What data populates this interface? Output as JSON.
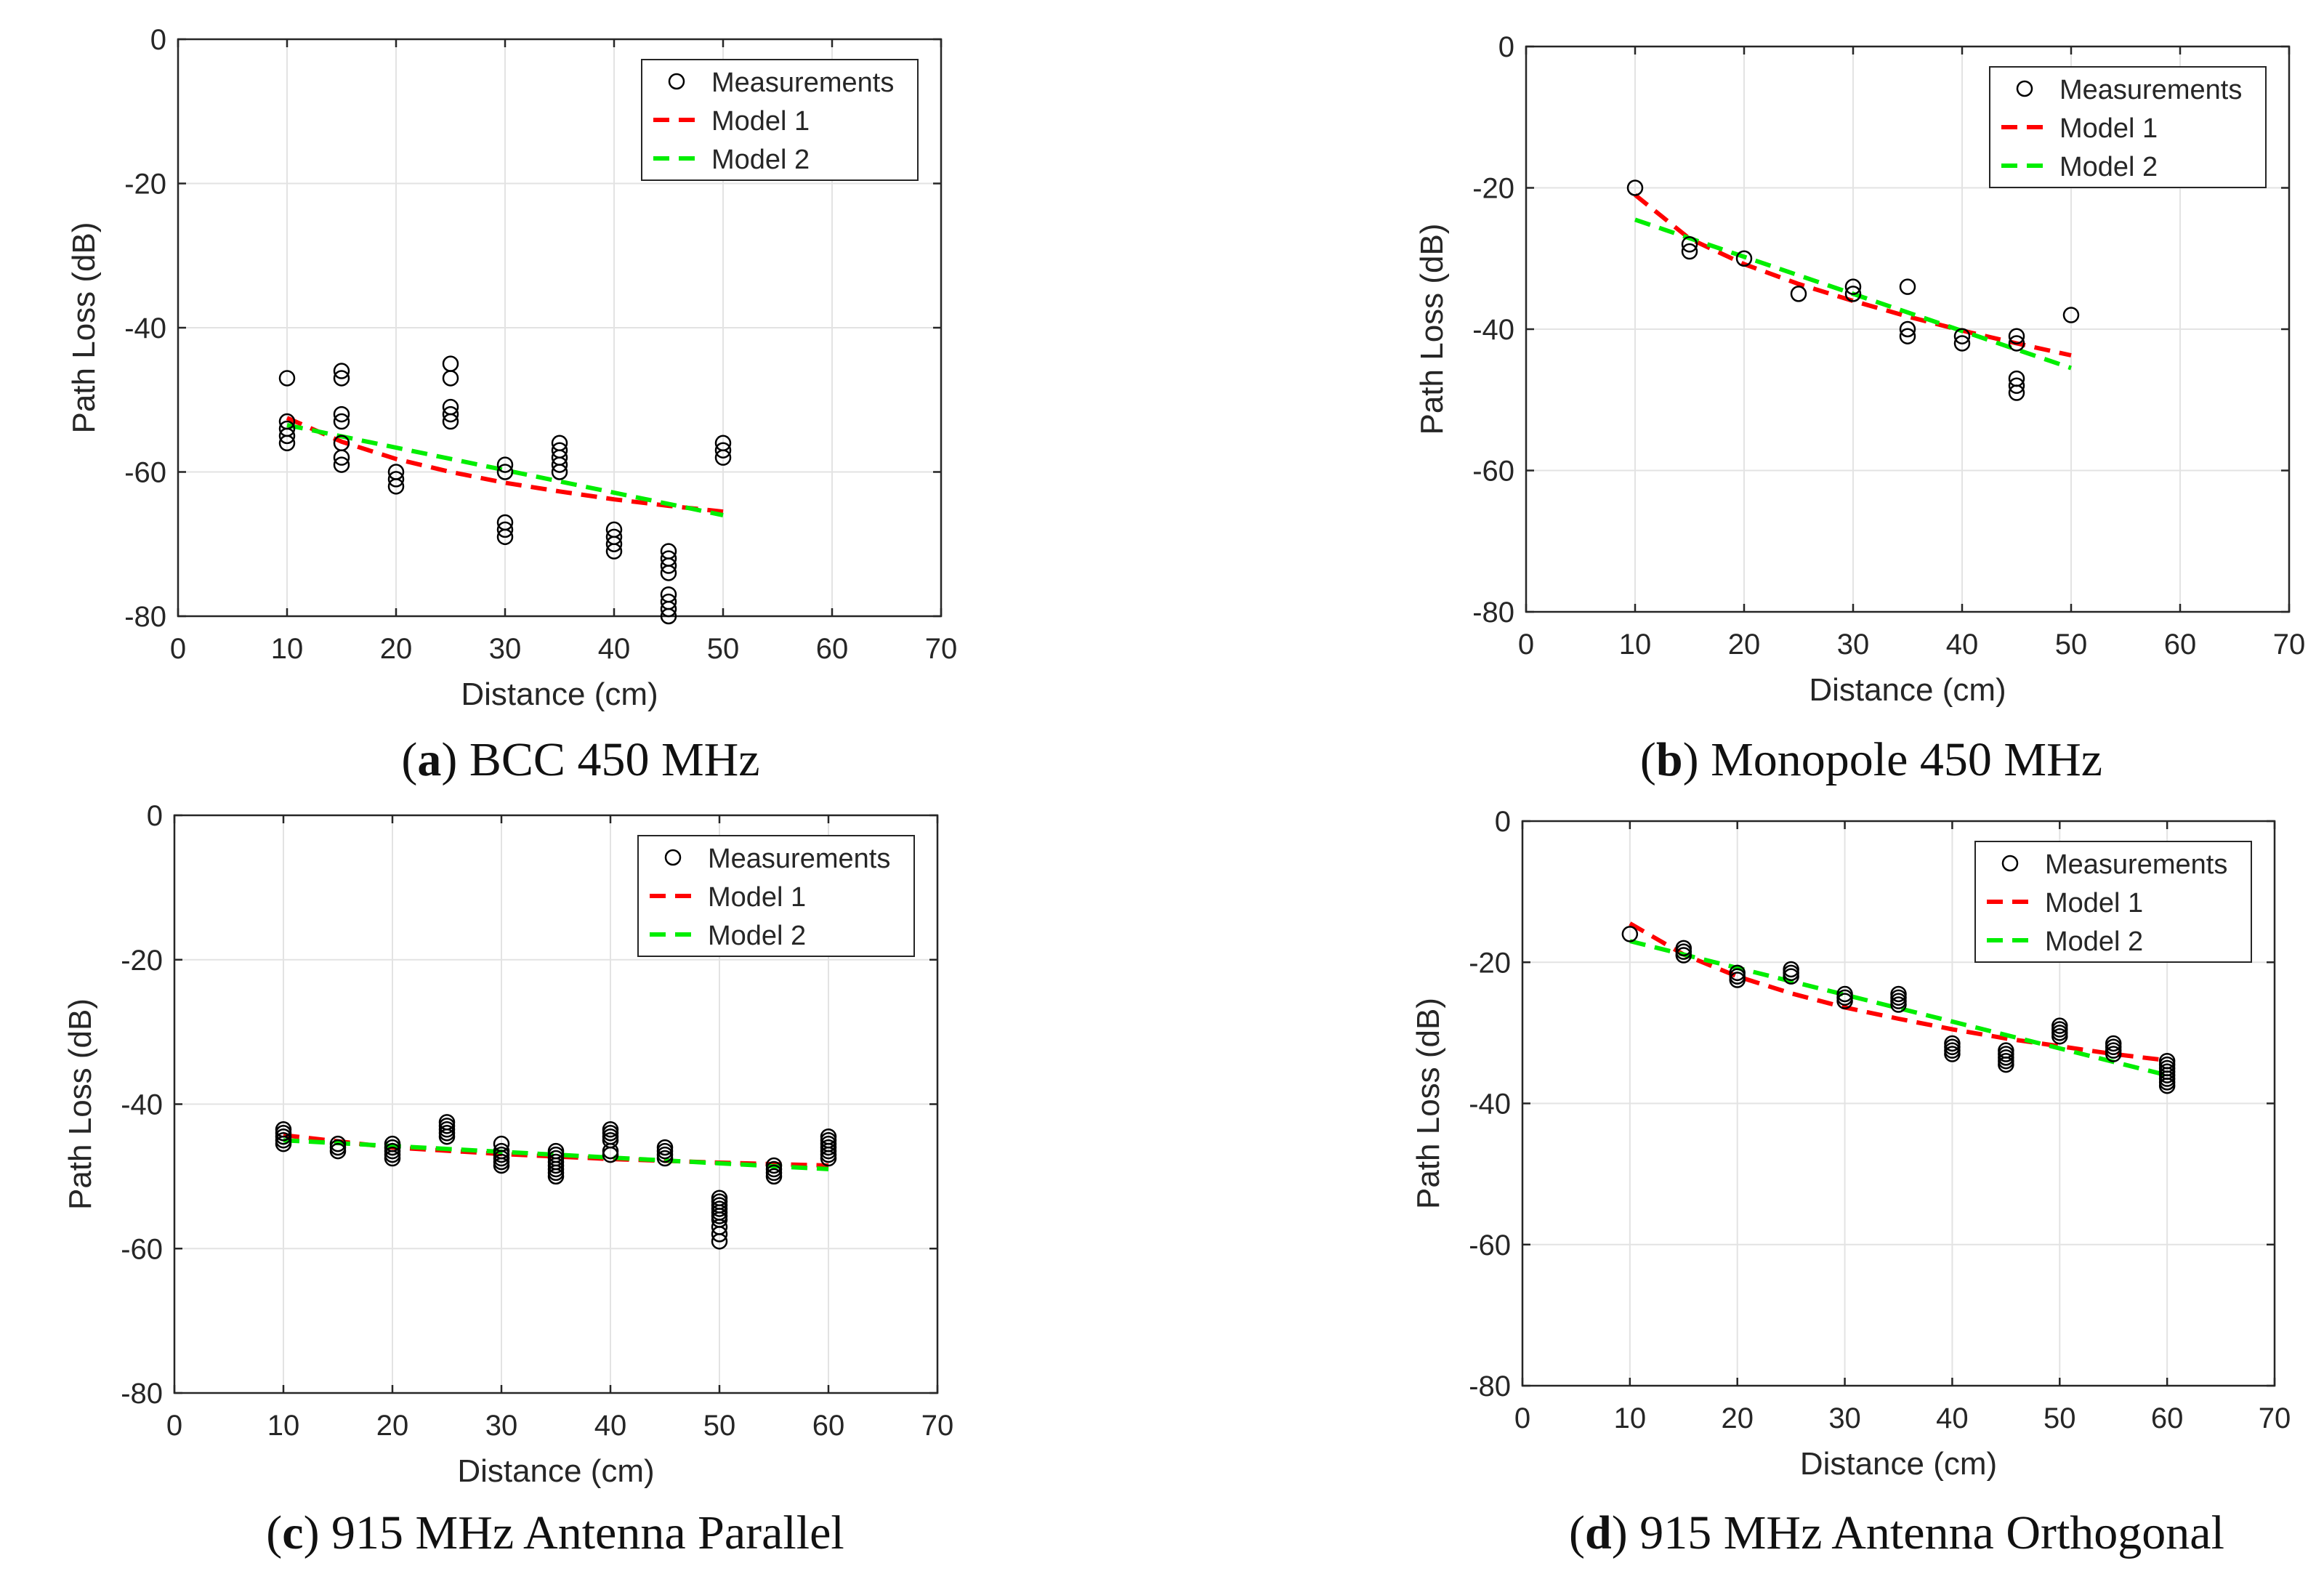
{
  "chart_data": [
    {
      "id": "a",
      "type": "scatter",
      "caption_letter": "a",
      "caption_text": " BCC 450 MHz",
      "xlabel": "Distance (cm)",
      "ylabel": "Path Loss (dB)",
      "xlim": [
        0,
        70
      ],
      "ylim": [
        -80,
        0
      ],
      "xticks": [
        "0",
        "10",
        "20",
        "30",
        "40",
        "50",
        "60",
        "70"
      ],
      "yticks": [
        "0",
        "-20",
        "-40",
        "-60",
        "-80"
      ],
      "grid": true,
      "legend_position": "top-right",
      "legend": [
        "Measurements",
        "Model 1",
        "Model 2"
      ],
      "measurements": [
        [
          10,
          -47
        ],
        [
          10,
          -53
        ],
        [
          10,
          -54
        ],
        [
          10,
          -55
        ],
        [
          10,
          -56
        ],
        [
          15,
          -46
        ],
        [
          15,
          -47
        ],
        [
          15,
          -52
        ],
        [
          15,
          -53
        ],
        [
          15,
          -56
        ],
        [
          15,
          -58
        ],
        [
          15,
          -59
        ],
        [
          20,
          -60
        ],
        [
          20,
          -61
        ],
        [
          20,
          -62
        ],
        [
          25,
          -45
        ],
        [
          25,
          -47
        ],
        [
          25,
          -51
        ],
        [
          25,
          -52
        ],
        [
          25,
          -53
        ],
        [
          30,
          -59
        ],
        [
          30,
          -60
        ],
        [
          30,
          -67
        ],
        [
          30,
          -68
        ],
        [
          30,
          -69
        ],
        [
          35,
          -56
        ],
        [
          35,
          -57
        ],
        [
          35,
          -58
        ],
        [
          35,
          -59
        ],
        [
          35,
          -60
        ],
        [
          40,
          -68
        ],
        [
          40,
          -69
        ],
        [
          40,
          -70
        ],
        [
          40,
          -71
        ],
        [
          45,
          -71
        ],
        [
          45,
          -72
        ],
        [
          45,
          -73
        ],
        [
          45,
          -74
        ],
        [
          45,
          -77
        ],
        [
          45,
          -78
        ],
        [
          45,
          -79
        ],
        [
          45,
          -80
        ],
        [
          50,
          -56
        ],
        [
          50,
          -57
        ],
        [
          50,
          -58
        ]
      ],
      "model1": [
        [
          10,
          -52.5
        ],
        [
          15,
          -55.8
        ],
        [
          20,
          -58.2
        ],
        [
          25,
          -60.0
        ],
        [
          30,
          -61.5
        ],
        [
          35,
          -62.7
        ],
        [
          40,
          -63.8
        ],
        [
          45,
          -64.7
        ],
        [
          50,
          -65.5
        ]
      ],
      "model2": [
        [
          10,
          -53.5
        ],
        [
          50,
          -66.0
        ]
      ]
    },
    {
      "id": "b",
      "type": "scatter",
      "caption_letter": "b",
      "caption_text": " Monopole 450 MHz",
      "xlabel": "Distance (cm)",
      "ylabel": "Path Loss (dB)",
      "xlim": [
        0,
        70
      ],
      "ylim": [
        -80,
        0
      ],
      "xticks": [
        "0",
        "10",
        "20",
        "30",
        "40",
        "50",
        "60",
        "70"
      ],
      "yticks": [
        "0",
        "-20",
        "-40",
        "-60",
        "-80"
      ],
      "grid": true,
      "legend_position": "top-right",
      "legend": [
        "Measurements",
        "Model 1",
        "Model 2"
      ],
      "measurements": [
        [
          10,
          -20
        ],
        [
          15,
          -28
        ],
        [
          15,
          -29
        ],
        [
          20,
          -30
        ],
        [
          25,
          -35
        ],
        [
          30,
          -34
        ],
        [
          30,
          -35
        ],
        [
          35,
          -34
        ],
        [
          35,
          -40
        ],
        [
          35,
          -41
        ],
        [
          40,
          -41
        ],
        [
          40,
          -42
        ],
        [
          45,
          -41
        ],
        [
          45,
          -42
        ],
        [
          45,
          -47
        ],
        [
          45,
          -48
        ],
        [
          45,
          -49
        ],
        [
          50,
          -38
        ]
      ],
      "model1": [
        [
          10,
          -21
        ],
        [
          15,
          -27.2
        ],
        [
          20,
          -30.8
        ],
        [
          25,
          -33.6
        ],
        [
          30,
          -36.0
        ],
        [
          35,
          -38.2
        ],
        [
          40,
          -40.2
        ],
        [
          45,
          -42.0
        ],
        [
          50,
          -43.7
        ]
      ],
      "model2": [
        [
          10,
          -24.5
        ],
        [
          50,
          -45.5
        ]
      ]
    },
    {
      "id": "c",
      "type": "scatter",
      "caption_letter": "c",
      "caption_text": " 915 MHz Antenna Parallel",
      "xlabel": "Distance (cm)",
      "ylabel": "Path Loss (dB)",
      "xlim": [
        0,
        70
      ],
      "ylim": [
        -80,
        0
      ],
      "xticks": [
        "0",
        "10",
        "20",
        "30",
        "40",
        "50",
        "60",
        "70"
      ],
      "yticks": [
        "0",
        "-20",
        "-40",
        "-60",
        "-80"
      ],
      "grid": true,
      "legend_position": "top-right",
      "legend": [
        "Measurements",
        "Model 1",
        "Model 2"
      ],
      "measurements": [
        [
          10,
          -43.5
        ],
        [
          10,
          -44
        ],
        [
          10,
          -44.5
        ],
        [
          10,
          -45
        ],
        [
          10,
          -45.5
        ],
        [
          15,
          -45.5
        ],
        [
          15,
          -46
        ],
        [
          15,
          -46.5
        ],
        [
          20,
          -45.5
        ],
        [
          20,
          -46
        ],
        [
          20,
          -46.5
        ],
        [
          20,
          -47
        ],
        [
          20,
          -47.5
        ],
        [
          25,
          -42.5
        ],
        [
          25,
          -43
        ],
        [
          25,
          -43.5
        ],
        [
          25,
          -44
        ],
        [
          25,
          -44.5
        ],
        [
          30,
          -45.5
        ],
        [
          30,
          -46.5
        ],
        [
          30,
          -47
        ],
        [
          30,
          -47.5
        ],
        [
          30,
          -48
        ],
        [
          30,
          -48.5
        ],
        [
          35,
          -46.5
        ],
        [
          35,
          -47
        ],
        [
          35,
          -47.5
        ],
        [
          35,
          -48
        ],
        [
          35,
          -48.5
        ],
        [
          35,
          -49
        ],
        [
          35,
          -49.5
        ],
        [
          35,
          -50
        ],
        [
          40,
          -43.5
        ],
        [
          40,
          -44
        ],
        [
          40,
          -44.5
        ],
        [
          40,
          -45
        ],
        [
          40,
          -46.5
        ],
        [
          40,
          -47
        ],
        [
          45,
          -46
        ],
        [
          45,
          -46.5
        ],
        [
          45,
          -47
        ],
        [
          45,
          -47.5
        ],
        [
          50,
          -53
        ],
        [
          50,
          -53.5
        ],
        [
          50,
          -54
        ],
        [
          50,
          -54.5
        ],
        [
          50,
          -55
        ],
        [
          50,
          -55.5
        ],
        [
          50,
          -56
        ],
        [
          50,
          -57
        ],
        [
          50,
          -58
        ],
        [
          50,
          -59
        ],
        [
          55,
          -48.5
        ],
        [
          55,
          -49
        ],
        [
          55,
          -49.5
        ],
        [
          55,
          -50
        ],
        [
          60,
          -44.5
        ],
        [
          60,
          -45
        ],
        [
          60,
          -45.5
        ],
        [
          60,
          -46
        ],
        [
          60,
          -46.5
        ],
        [
          60,
          -47
        ],
        [
          60,
          -47.5
        ]
      ],
      "model1": [
        [
          10,
          -44.3
        ],
        [
          20,
          -46.0
        ],
        [
          30,
          -46.9
        ],
        [
          40,
          -47.6
        ],
        [
          50,
          -48.1
        ],
        [
          60,
          -48.5
        ]
      ],
      "model2": [
        [
          10,
          -45.0
        ],
        [
          60,
          -49.0
        ]
      ]
    },
    {
      "id": "d",
      "type": "scatter",
      "caption_letter": "d",
      "caption_text": " 915 MHz Antenna Orthogonal",
      "xlabel": "Distance (cm)",
      "ylabel": "Path Loss (dB)",
      "xlim": [
        0,
        70
      ],
      "ylim": [
        -80,
        0
      ],
      "xticks": [
        "0",
        "10",
        "20",
        "30",
        "40",
        "50",
        "60",
        "70"
      ],
      "yticks": [
        "0",
        "-20",
        "-40",
        "-60",
        "-80"
      ],
      "grid": true,
      "legend_position": "top-right",
      "legend": [
        "Measurements",
        "Model 1",
        "Model 2"
      ],
      "measurements": [
        [
          10,
          -16
        ],
        [
          15,
          -18
        ],
        [
          15,
          -18.5
        ],
        [
          15,
          -19
        ],
        [
          20,
          -21.5
        ],
        [
          20,
          -22
        ],
        [
          20,
          -22.5
        ],
        [
          25,
          -21
        ],
        [
          25,
          -21.5
        ],
        [
          25,
          -22
        ],
        [
          30,
          -24.5
        ],
        [
          30,
          -25
        ],
        [
          30,
          -25.5
        ],
        [
          35,
          -24.5
        ],
        [
          35,
          -25
        ],
        [
          35,
          -25.5
        ],
        [
          35,
          -26
        ],
        [
          40,
          -31.5
        ],
        [
          40,
          -32
        ],
        [
          40,
          -32.5
        ],
        [
          40,
          -33
        ],
        [
          45,
          -32.5
        ],
        [
          45,
          -33
        ],
        [
          45,
          -33.5
        ],
        [
          45,
          -34
        ],
        [
          45,
          -34.5
        ],
        [
          50,
          -29
        ],
        [
          50,
          -29.5
        ],
        [
          50,
          -30
        ],
        [
          50,
          -30.5
        ],
        [
          55,
          -31.5
        ],
        [
          55,
          -32
        ],
        [
          55,
          -32.5
        ],
        [
          55,
          -33
        ],
        [
          60,
          -34
        ],
        [
          60,
          -34.5
        ],
        [
          60,
          -35
        ],
        [
          60,
          -35.5
        ],
        [
          60,
          -36
        ],
        [
          60,
          -36.5
        ],
        [
          60,
          -37
        ],
        [
          60,
          -37.5
        ]
      ],
      "model1": [
        [
          10,
          -14.5
        ],
        [
          15,
          -18.9
        ],
        [
          20,
          -22.0
        ],
        [
          25,
          -24.4
        ],
        [
          30,
          -26.4
        ],
        [
          35,
          -28.0
        ],
        [
          40,
          -29.5
        ],
        [
          45,
          -30.8
        ],
        [
          50,
          -31.9
        ],
        [
          55,
          -33.0
        ],
        [
          60,
          -33.9
        ]
      ],
      "model2": [
        [
          10,
          -17
        ],
        [
          60,
          -36
        ]
      ]
    }
  ]
}
